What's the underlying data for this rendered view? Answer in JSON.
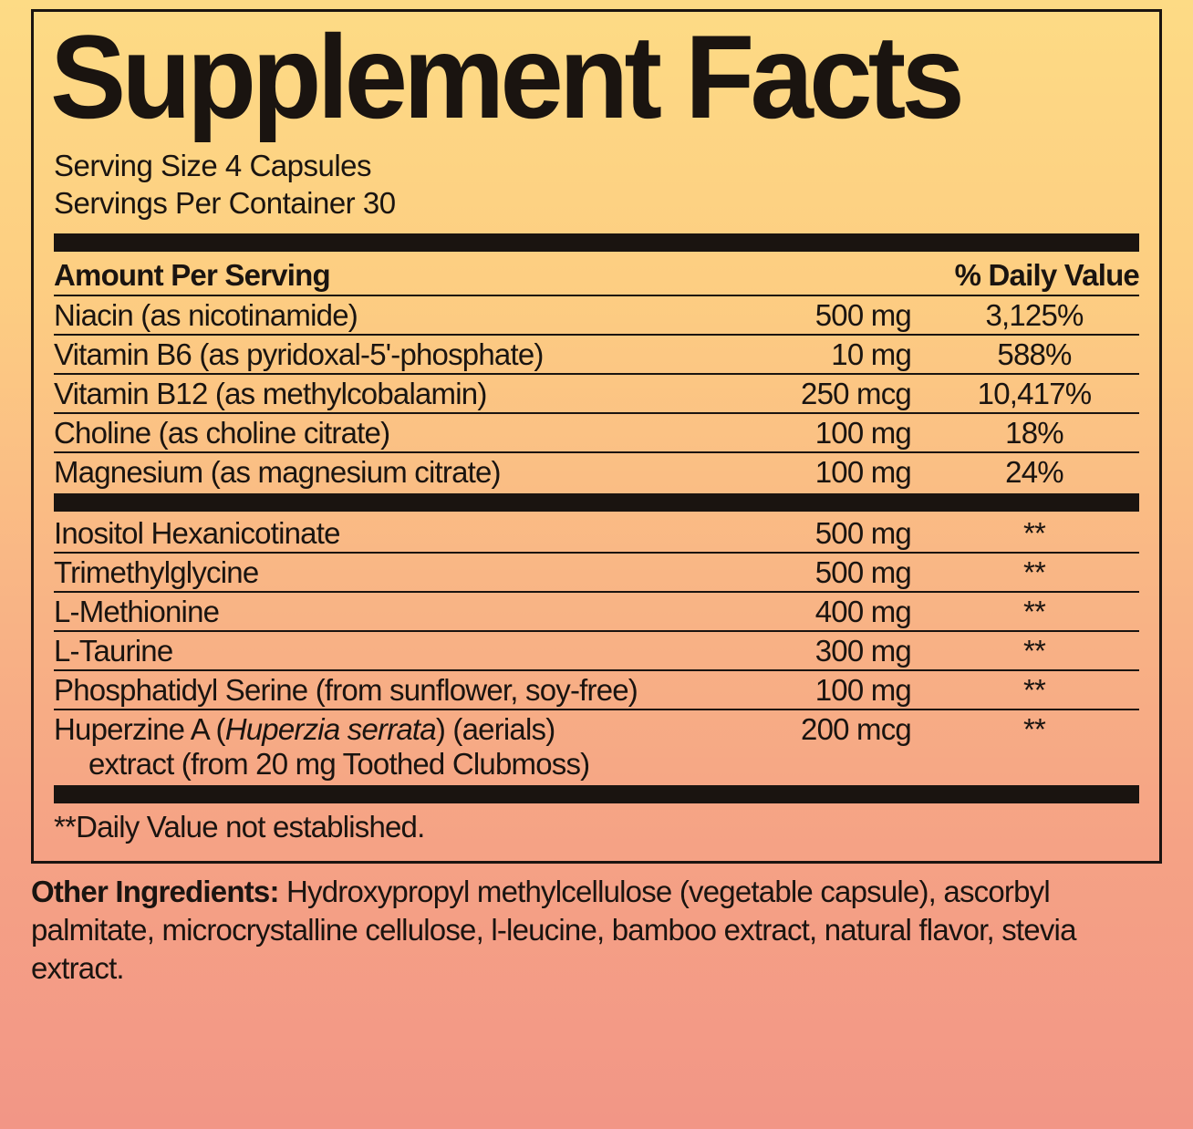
{
  "title": "Supplement Facts",
  "serving_size": "Serving Size 4 Capsules",
  "servings_per_container": "Servings Per Container 30",
  "header": {
    "amount": "Amount Per Serving",
    "dv": "% Daily Value"
  },
  "section1": [
    {
      "name": "Niacin (as nicotinamide)",
      "amount": "500 mg",
      "dv": "3,125%"
    },
    {
      "name": "Vitamin B6 (as pyridoxal-5'-phosphate)",
      "amount": "10 mg",
      "dv": "588%"
    },
    {
      "name": "Vitamin B12 (as methylcobalamin)",
      "amount": "250 mcg",
      "dv": "10,417%"
    },
    {
      "name": "Choline (as choline citrate)",
      "amount": "100 mg",
      "dv": "18%"
    },
    {
      "name": "Magnesium (as magnesium citrate)",
      "amount": "100 mg",
      "dv": "24%"
    }
  ],
  "section2": [
    {
      "name": "Inositol Hexanicotinate",
      "amount": "500 mg",
      "dv": "**"
    },
    {
      "name": "Trimethylglycine",
      "amount": "500 mg",
      "dv": "**"
    },
    {
      "name": "L-Methionine",
      "amount": "400 mg",
      "dv": "**"
    },
    {
      "name": "L-Taurine",
      "amount": "300 mg",
      "dv": "**"
    },
    {
      "name": "Phosphatidyl Serine (from sunflower, soy-free)",
      "amount": "100 mg",
      "dv": "**"
    }
  ],
  "huperzine": {
    "prefix": "Huperzine A (",
    "italic": "Huperzia serrata",
    "suffix": ") (aerials)",
    "line2": "extract (from 20 mg Toothed Clubmoss)",
    "amount": "200 mcg",
    "dv": "**"
  },
  "footnote": "**Daily Value not established.",
  "other_label": "Other Ingredients:",
  "other_text": " Hydroxypropyl methylcellulose (vegetable capsule), ascorbyl palmitate, microcrystalline cellulose, l-leucine, bamboo extract, natural flavor, stevia extract."
}
